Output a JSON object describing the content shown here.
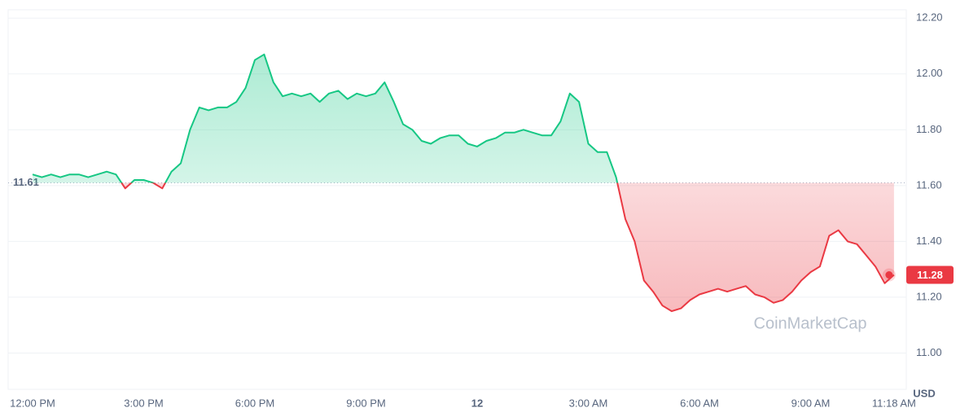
{
  "chart_data": {
    "type": "line",
    "categories": [
      "12:00 PM",
      null,
      null,
      null,
      null,
      null,
      null,
      null,
      null,
      null,
      null,
      null,
      "3:00 PM",
      null,
      null,
      null,
      null,
      null,
      null,
      null,
      null,
      null,
      null,
      null,
      "6:00 PM",
      null,
      null,
      null,
      null,
      null,
      null,
      null,
      null,
      null,
      null,
      null,
      "9:00 PM",
      null,
      null,
      null,
      null,
      null,
      null,
      null,
      null,
      null,
      null,
      null,
      "12",
      null,
      null,
      null,
      null,
      null,
      null,
      null,
      null,
      null,
      null,
      null,
      "3:00 AM",
      null,
      null,
      null,
      null,
      null,
      null,
      null,
      null,
      null,
      null,
      null,
      "6:00 AM",
      null,
      null,
      null,
      null,
      null,
      null,
      null,
      null,
      null,
      null,
      null,
      "9:00 AM",
      null,
      null,
      null,
      null,
      null,
      null,
      null,
      null,
      "11:18 AM"
    ],
    "values": [
      11.64,
      11.63,
      11.64,
      11.63,
      11.64,
      11.64,
      11.63,
      11.64,
      11.65,
      11.64,
      11.59,
      11.62,
      11.62,
      11.61,
      11.59,
      11.65,
      11.68,
      11.8,
      11.88,
      11.87,
      11.88,
      11.88,
      11.9,
      11.95,
      12.05,
      12.07,
      11.97,
      11.92,
      11.93,
      11.92,
      11.93,
      11.9,
      11.93,
      11.94,
      11.91,
      11.93,
      11.92,
      11.93,
      11.97,
      11.9,
      11.82,
      11.8,
      11.76,
      11.75,
      11.77,
      11.78,
      11.78,
      11.75,
      11.74,
      11.76,
      11.77,
      11.79,
      11.79,
      11.8,
      11.79,
      11.78,
      11.78,
      11.83,
      11.93,
      11.9,
      11.75,
      11.72,
      11.72,
      11.63,
      11.48,
      11.4,
      11.26,
      11.22,
      11.17,
      11.15,
      11.16,
      11.19,
      11.21,
      11.22,
      11.23,
      11.22,
      11.23,
      11.24,
      11.21,
      11.2,
      11.18,
      11.19,
      11.22,
      11.26,
      11.29,
      11.31,
      11.42,
      11.44,
      11.4,
      11.39,
      11.35,
      11.31,
      11.25,
      11.28
    ],
    "baseline": 11.61,
    "up_color": "#16c784",
    "down_color": "#ea3943",
    "ylim": [
      10.87,
      12.23
    ],
    "yticks": [
      {
        "value": 11.0,
        "label": "11.00"
      },
      {
        "value": 11.2,
        "label": "11.20"
      },
      {
        "value": 11.4,
        "label": "11.40"
      },
      {
        "value": 11.6,
        "label": "11.60"
      },
      {
        "value": 11.8,
        "label": "11.80"
      },
      {
        "value": 12.0,
        "label": "12.00"
      },
      {
        "value": 12.2,
        "label": "12.20"
      }
    ],
    "y_label": "USD",
    "watermark": "CoinMarketCap",
    "grid": true
  }
}
